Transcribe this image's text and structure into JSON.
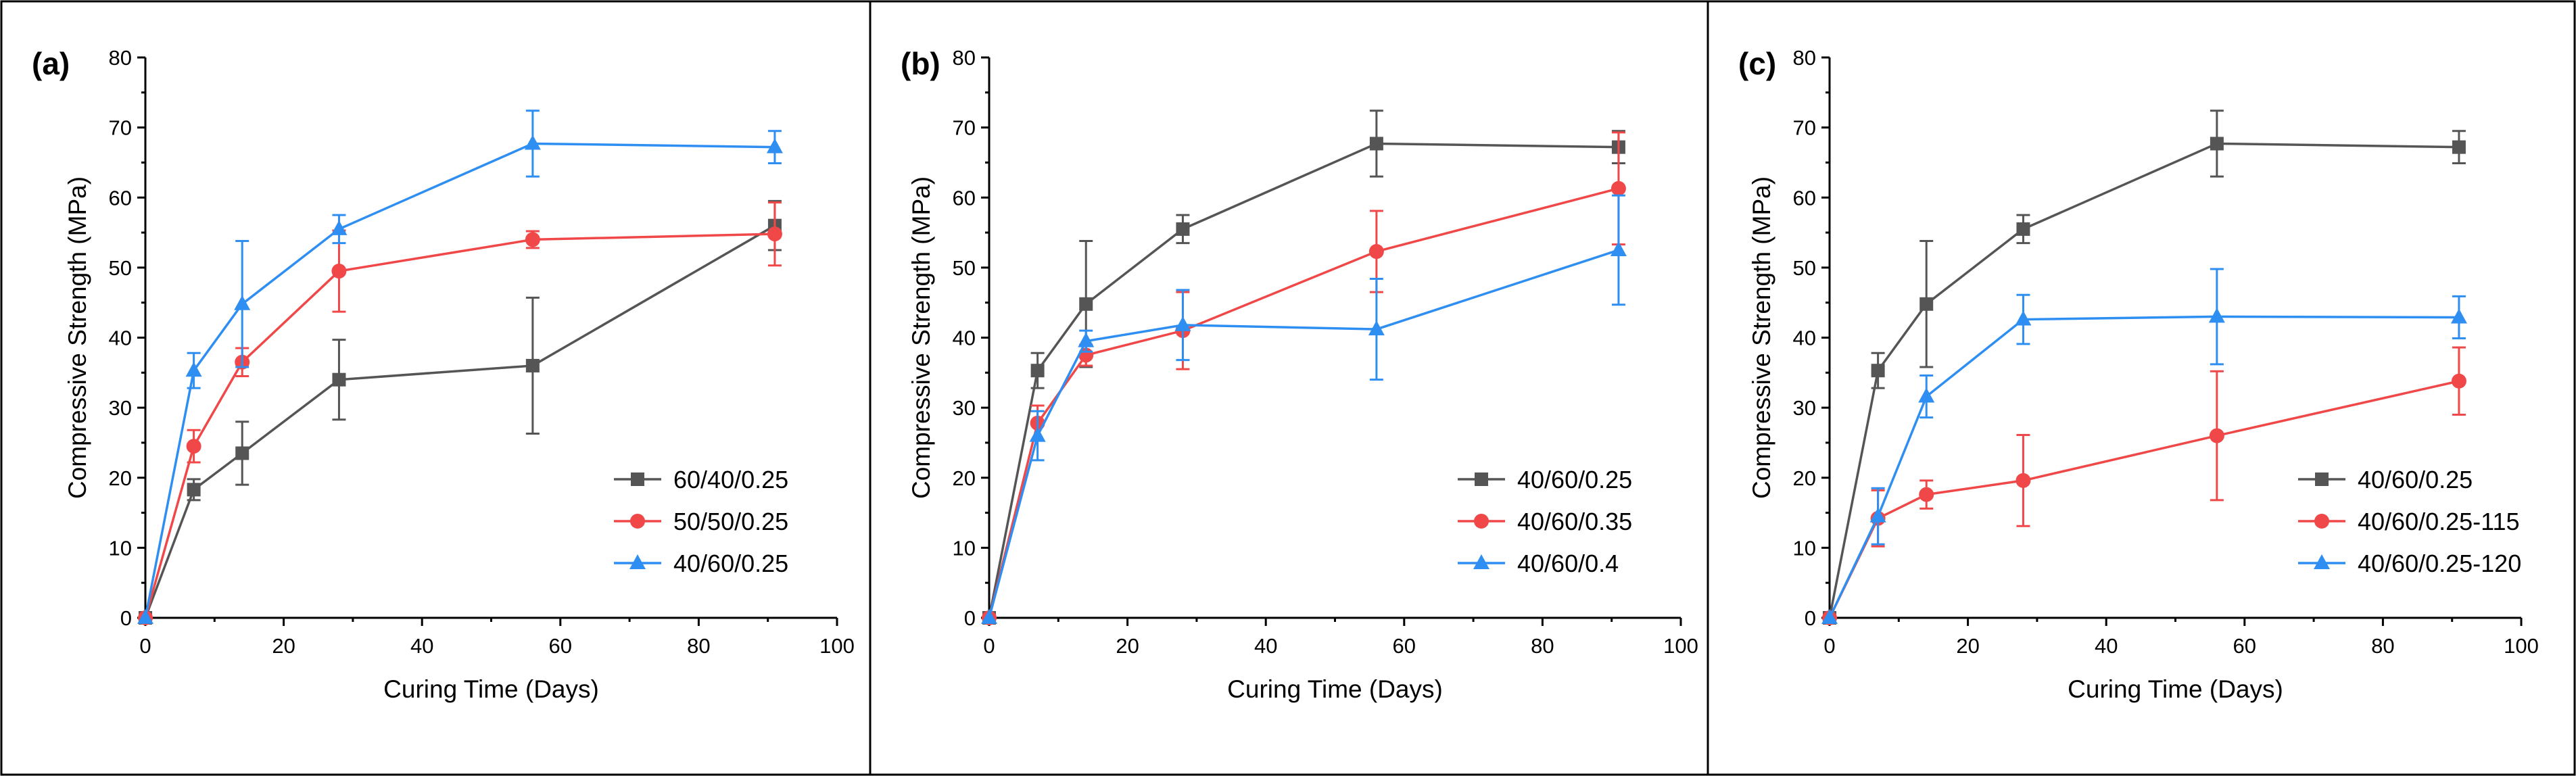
{
  "chart_data": [
    {
      "type": "line",
      "panel_label": "(a)",
      "xlabel": "Curing Time (Days)",
      "ylabel": "Compressive Strength (MPa)",
      "xlim": [
        0,
        100
      ],
      "ylim": [
        0,
        80
      ],
      "xticks": [
        "0",
        "20",
        "40",
        "60",
        "80",
        "100"
      ],
      "yticks": [
        "0",
        "10",
        "20",
        "30",
        "40",
        "50",
        "60",
        "70",
        "80"
      ],
      "legend_position": "bottom-right",
      "series": [
        {
          "name": "60/40/0.25",
          "color": "#555555",
          "marker": "square",
          "x": [
            0,
            7,
            14,
            28,
            56,
            91
          ],
          "y": [
            0,
            18.3,
            23.5,
            34,
            36,
            56
          ],
          "err": [
            0,
            1.5,
            4.5,
            5.7,
            9.7,
            3.5
          ]
        },
        {
          "name": "50/50/0.25",
          "color": "#f04848",
          "marker": "circle",
          "x": [
            0,
            7,
            14,
            28,
            56,
            91
          ],
          "y": [
            0,
            24.5,
            36.5,
            49.5,
            54,
            54.8
          ],
          "err": [
            0,
            2.3,
            2,
            5.8,
            1.2,
            4.5
          ]
        },
        {
          "name": "40/60/0.25",
          "color": "#2e8ef2",
          "marker": "triangle",
          "x": [
            0,
            7,
            14,
            28,
            56,
            91
          ],
          "y": [
            0,
            35.3,
            44.8,
            55.5,
            67.7,
            67.2
          ],
          "err": [
            0,
            2.5,
            9,
            2,
            4.7,
            2.3
          ]
        }
      ]
    },
    {
      "type": "line",
      "panel_label": "(b)",
      "xlabel": "Curing Time (Days)",
      "ylabel": "Compressive Strength (MPa)",
      "xlim": [
        0,
        100
      ],
      "ylim": [
        0,
        80
      ],
      "xticks": [
        "0",
        "20",
        "40",
        "60",
        "80",
        "100"
      ],
      "yticks": [
        "0",
        "10",
        "20",
        "30",
        "40",
        "50",
        "60",
        "70",
        "80"
      ],
      "legend_position": "bottom-right",
      "series": [
        {
          "name": "40/60/0.25",
          "color": "#555555",
          "marker": "square",
          "x": [
            0,
            7,
            14,
            28,
            56,
            91
          ],
          "y": [
            0,
            35.3,
            44.8,
            55.5,
            67.7,
            67.2
          ],
          "err": [
            0,
            2.5,
            9,
            2,
            4.7,
            2.3
          ]
        },
        {
          "name": "40/60/0.35",
          "color": "#f04848",
          "marker": "circle",
          "x": [
            0,
            7,
            14,
            28,
            56,
            91
          ],
          "y": [
            0,
            27.8,
            37.5,
            41,
            52.3,
            61.3
          ],
          "err": [
            0,
            2.5,
            1.5,
            5.5,
            5.8,
            8
          ]
        },
        {
          "name": "40/60/0.4",
          "color": "#2e8ef2",
          "marker": "triangle",
          "x": [
            0,
            7,
            14,
            28,
            56,
            91
          ],
          "y": [
            0,
            26,
            39.5,
            41.8,
            41.2,
            52.5
          ],
          "err": [
            0,
            3.5,
            1.5,
            5,
            7.2,
            7.8
          ]
        }
      ]
    },
    {
      "type": "line",
      "panel_label": "(c)",
      "xlabel": "Curing Time (Days)",
      "ylabel": "Compressive Strength (MPa)",
      "xlim": [
        0,
        100
      ],
      "ylim": [
        0,
        80
      ],
      "xticks": [
        "0",
        "20",
        "40",
        "60",
        "80",
        "100"
      ],
      "yticks": [
        "0",
        "10",
        "20",
        "30",
        "40",
        "50",
        "60",
        "70",
        "80"
      ],
      "legend_position": "bottom-right",
      "series": [
        {
          "name": "40/60/0.25",
          "color": "#555555",
          "marker": "square",
          "x": [
            0,
            7,
            14,
            28,
            56,
            91
          ],
          "y": [
            0,
            35.3,
            44.8,
            55.5,
            67.7,
            67.2
          ],
          "err": [
            0,
            2.5,
            9,
            2,
            4.7,
            2.3
          ]
        },
        {
          "name": "40/60/0.25-115",
          "color": "#f04848",
          "marker": "circle",
          "x": [
            0,
            7,
            14,
            28,
            56,
            91
          ],
          "y": [
            0,
            14.2,
            17.6,
            19.6,
            26,
            33.8
          ],
          "err": [
            0,
            4,
            2,
            6.5,
            9.2,
            4.8
          ]
        },
        {
          "name": "40/60/0.25-120",
          "color": "#2e8ef2",
          "marker": "triangle",
          "x": [
            0,
            7,
            14,
            28,
            56,
            91
          ],
          "y": [
            0,
            14.5,
            31.6,
            42.6,
            43,
            42.9
          ],
          "err": [
            0,
            4,
            3,
            3.5,
            6.8,
            3
          ]
        }
      ]
    }
  ]
}
